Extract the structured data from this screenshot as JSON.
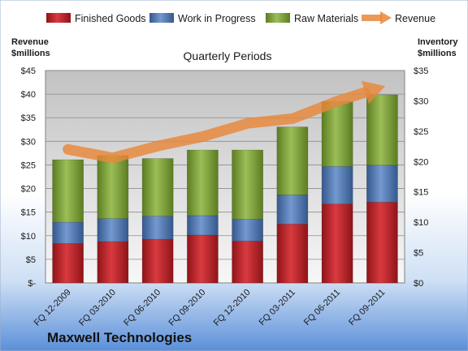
{
  "chart_data": {
    "type": "bar",
    "stacked": true,
    "title": "Quarterly Periods",
    "company": "Maxwell Technologies",
    "left_axis_title": [
      "Revenue",
      "$millions"
    ],
    "right_axis_title": [
      "Inventory",
      "$millions"
    ],
    "left_axis_range": [
      0,
      45
    ],
    "right_axis_range": [
      0,
      35
    ],
    "left_tick_labels": [
      "$-",
      "$5",
      "$10",
      "$15",
      "$20",
      "$25",
      "$30",
      "$35",
      "$40",
      "$45"
    ],
    "left_tick_values": [
      0,
      5,
      10,
      15,
      20,
      25,
      30,
      35,
      40,
      45
    ],
    "right_tick_labels": [
      "$0",
      "$5",
      "$10",
      "$15",
      "$20",
      "$25",
      "$30",
      "$35"
    ],
    "right_tick_values": [
      0,
      5,
      10,
      15,
      20,
      25,
      30,
      35
    ],
    "grid": true,
    "legend_position": "top",
    "categories": [
      "FQ 12-2009",
      "FQ 03-2010",
      "FQ 06-2010",
      "FQ 09-2010",
      "FQ 12-2010",
      "FQ 03-2011",
      "FQ 06-2011",
      "FQ 09-2011"
    ],
    "series": [
      {
        "name": "Finished Goods",
        "type": "bar",
        "axis": "right",
        "color": "#c0262b",
        "values": [
          6.5,
          6.8,
          7.2,
          7.9,
          6.9,
          9.7,
          13.0,
          13.3
        ]
      },
      {
        "name": "Work in Progress",
        "type": "bar",
        "axis": "right",
        "color": "#4f75b0",
        "values": [
          3.5,
          3.8,
          3.8,
          3.2,
          3.6,
          4.8,
          6.2,
          6.1
        ]
      },
      {
        "name": "Raw Materials",
        "type": "bar",
        "axis": "right",
        "color": "#7fa23d",
        "values": [
          10.3,
          10.4,
          9.5,
          10.8,
          11.4,
          11.2,
          10.7,
          11.6
        ]
      },
      {
        "name": "Revenue",
        "type": "line",
        "axis": "left",
        "color": "#e8873a",
        "values": [
          28.3,
          26.5,
          29.0,
          31.0,
          33.8,
          34.8,
          38.5,
          41.5
        ]
      }
    ]
  }
}
